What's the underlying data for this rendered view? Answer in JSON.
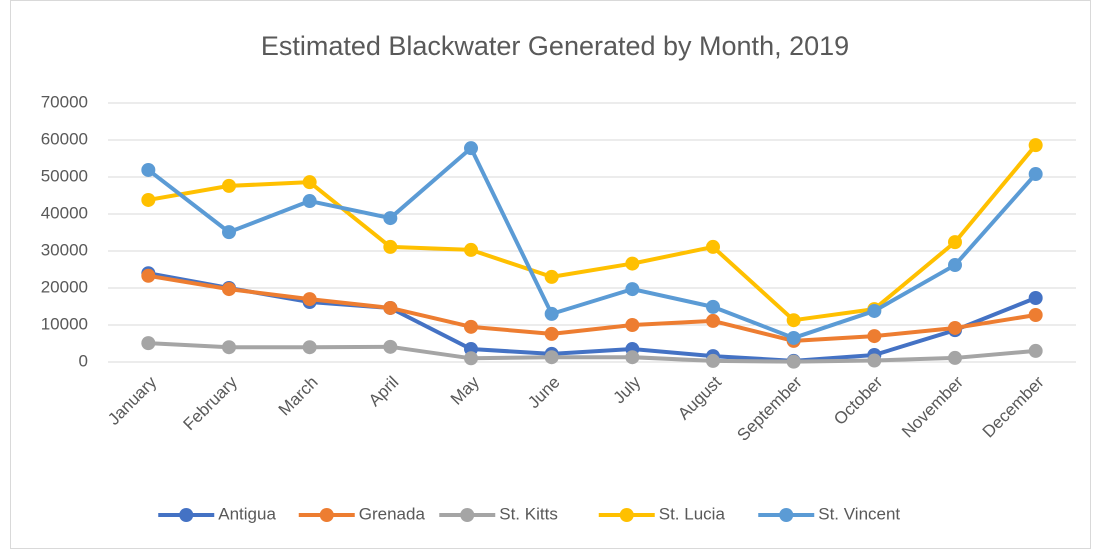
{
  "chart_data": {
    "type": "line",
    "title": "Estimated Blackwater Generated by Month, 2019",
    "categories": [
      "January",
      "February",
      "March",
      "April",
      "May",
      "June",
      "July",
      "August",
      "September",
      "October",
      "November",
      "December"
    ],
    "series": [
      {
        "name": "Antigua",
        "color": "#4472c4",
        "values": [
          24000,
          20000,
          16200,
          14600,
          3500,
          2200,
          3500,
          1600,
          300,
          1900,
          8600,
          17300
        ]
      },
      {
        "name": "Grenada",
        "color": "#ed7d31",
        "values": [
          23300,
          19700,
          17000,
          14600,
          9500,
          7600,
          10000,
          11100,
          5700,
          7000,
          9200,
          12700
        ]
      },
      {
        "name": "St. Kitts",
        "color": "#a5a5a5",
        "values": [
          5100,
          4000,
          4000,
          4100,
          1000,
          1300,
          1300,
          300,
          100,
          400,
          1100,
          3000
        ]
      },
      {
        "name": "St. Lucia",
        "color": "#ffc000",
        "values": [
          43800,
          47600,
          48600,
          31100,
          30300,
          23000,
          26600,
          31100,
          11300,
          14300,
          32400,
          58600
        ]
      },
      {
        "name": "St. Vincent",
        "color": "#5b9bd5",
        "values": [
          51900,
          35100,
          43500,
          38900,
          57800,
          13000,
          19700,
          14900,
          6500,
          13800,
          26200,
          50800
        ]
      }
    ],
    "ylim": [
      0,
      70000
    ],
    "yticks": [
      0,
      10000,
      20000,
      30000,
      40000,
      50000,
      60000,
      70000
    ],
    "grid": true
  }
}
